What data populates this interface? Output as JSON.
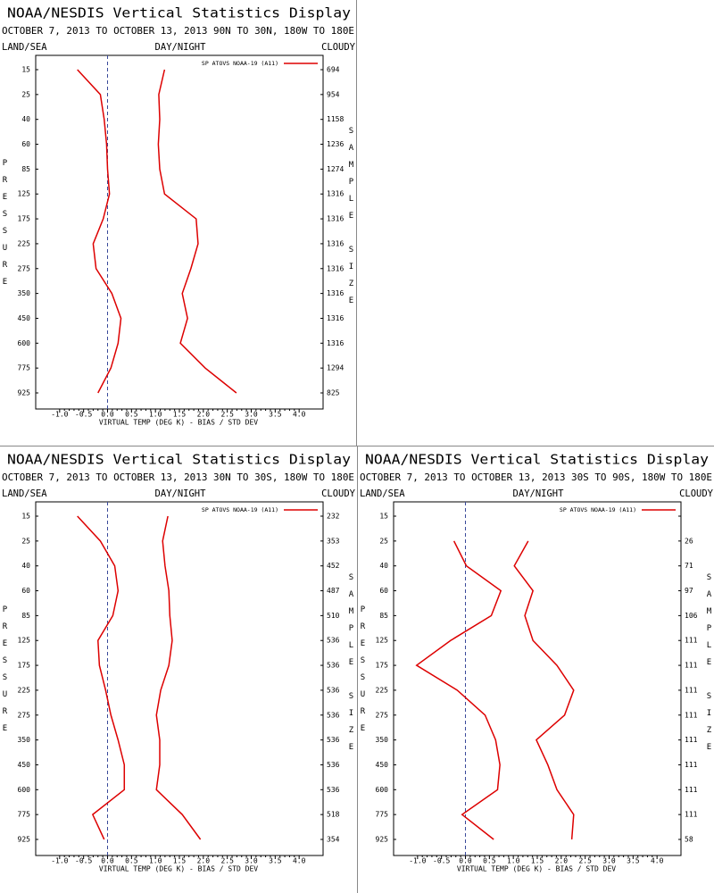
{
  "chart_data": [
    {
      "type": "line",
      "title": "NOAA/NESDIS Vertical Statistics Display",
      "subtitle": "OCTOBER 7, 2013 TO OCTOBER 13, 2013 90N TO 30N, 180W TO 180E",
      "left_header": "LAND/SEA",
      "center_header": "DAY/NIGHT",
      "right_header": "CLOUDY",
      "ylabel": "PRESSURE",
      "y2label": "SAMPLE SIZE",
      "xlabel": "VIRTUAL TEMP (DEG K) - BIAS / STD DEV",
      "categories": [
        15,
        25,
        40,
        60,
        85,
        125,
        175,
        225,
        275,
        350,
        450,
        600,
        775,
        925
      ],
      "sample_sizes": [
        694,
        954,
        1158,
        1236,
        1274,
        1316,
        1316,
        1316,
        1316,
        1316,
        1316,
        1316,
        1294,
        825
      ],
      "series": [
        {
          "name": "SP ATOVS NOAA-19 (A11)",
          "color": "#dd0000",
          "values": [
            -0.63,
            -0.15,
            -0.07,
            -0.02,
            0.0,
            0.04,
            -0.09,
            -0.3,
            -0.24,
            0.09,
            0.28,
            0.22,
            0.07,
            -0.2
          ]
        },
        {
          "color": "#dd0000",
          "values": [
            1.19,
            1.07,
            1.09,
            1.06,
            1.09,
            1.19,
            1.85,
            1.89,
            1.74,
            1.56,
            1.67,
            1.52,
            2.04,
            2.69
          ]
        }
      ],
      "legend": "top-right",
      "xlim": [
        -1.5,
        4.5
      ],
      "xticks": [
        {
          "value": -1,
          "label": "-1.0"
        },
        {
          "value": -0.5,
          "label": "-0.5"
        },
        {
          "value": 0,
          "label": "0.0"
        },
        {
          "value": 0.5,
          "label": "0.5"
        },
        {
          "value": 1,
          "label": "1.0"
        },
        {
          "value": 1.5,
          "label": "1.5"
        },
        {
          "value": 2,
          "label": "2.0"
        },
        {
          "value": 2.5,
          "label": "2.5"
        },
        {
          "value": 3,
          "label": "3.0"
        },
        {
          "value": 3.5,
          "label": "3.5"
        },
        {
          "value": 4,
          "label": "4.0"
        }
      ]
    },
    {
      "type": "line",
      "title": "NOAA/NESDIS Vertical Statistics Display",
      "subtitle": "OCTOBER 7, 2013 TO OCTOBER 13, 2013 30N TO 30S, 180W TO 180E",
      "left_header": "LAND/SEA",
      "center_header": "DAY/NIGHT",
      "right_header": "CLOUDY",
      "ylabel": "PRESSURE",
      "y2label": "SAMPLE SIZE",
      "xlabel": "VIRTUAL TEMP (DEG K) - BIAS / STD DEV",
      "categories": [
        15,
        25,
        40,
        60,
        85,
        125,
        175,
        225,
        275,
        350,
        450,
        600,
        775,
        925
      ],
      "sample_sizes": [
        232,
        353,
        452,
        487,
        510,
        536,
        536,
        536,
        536,
        536,
        536,
        536,
        518,
        354
      ],
      "series": [
        {
          "name": "SP ATOVS NOAA-19 (A11)",
          "color": "#dd0000",
          "values": [
            -0.63,
            -0.15,
            0.15,
            0.22,
            0.11,
            -0.2,
            -0.17,
            -0.04,
            0.07,
            0.22,
            0.35,
            0.35,
            -0.31,
            -0.07
          ]
        },
        {
          "color": "#dd0000",
          "values": [
            1.26,
            1.15,
            1.2,
            1.28,
            1.3,
            1.35,
            1.28,
            1.11,
            1.02,
            1.09,
            1.09,
            1.02,
            1.56,
            1.94
          ]
        }
      ],
      "legend": "top-right",
      "xlim": [
        -1.5,
        4.5
      ],
      "xticks": [
        {
          "value": -1,
          "label": "-1.0"
        },
        {
          "value": -0.5,
          "label": "-0.5"
        },
        {
          "value": 0,
          "label": "0.0"
        },
        {
          "value": 0.5,
          "label": "0.5"
        },
        {
          "value": 1,
          "label": "1.0"
        },
        {
          "value": 1.5,
          "label": "1.5"
        },
        {
          "value": 2,
          "label": "2.0"
        },
        {
          "value": 2.5,
          "label": "2.5"
        },
        {
          "value": 3,
          "label": "3.0"
        },
        {
          "value": 3.5,
          "label": "3.5"
        },
        {
          "value": 4,
          "label": "4.0"
        }
      ]
    },
    {
      "type": "line",
      "title": "NOAA/NESDIS Vertical Statistics Display",
      "subtitle": "OCTOBER 7, 2013 TO OCTOBER 13, 2013 30S TO 90S, 180W TO 180E",
      "left_header": "LAND/SEA",
      "center_header": "DAY/NIGHT",
      "right_header": "CLOUDY",
      "ylabel": "PRESSURE",
      "y2label": "SAMPLE SIZE",
      "xlabel": "VIRTUAL TEMP (DEG K) - BIAS / STD DEV",
      "categories": [
        15,
        25,
        40,
        60,
        85,
        125,
        175,
        225,
        275,
        350,
        450,
        600,
        775,
        925
      ],
      "sample_sizes": [
        null,
        26,
        71,
        97,
        106,
        111,
        111,
        111,
        111,
        111,
        111,
        111,
        111,
        58
      ],
      "series": [
        {
          "name": "SP ATOVS NOAA-19 (A11)",
          "color": "#dd0000",
          "values": [
            null,
            -0.24,
            0.02,
            0.74,
            0.54,
            -0.31,
            -1.02,
            -0.17,
            0.41,
            0.63,
            0.72,
            0.67,
            -0.07,
            0.59
          ]
        },
        {
          "color": "#dd0000",
          "values": [
            null,
            1.31,
            1.02,
            1.41,
            1.24,
            1.41,
            1.91,
            2.26,
            2.07,
            1.48,
            1.72,
            1.91,
            2.26,
            2.22
          ]
        }
      ],
      "legend": "top-right",
      "xlim": [
        -1.5,
        4.5
      ],
      "xticks": [
        {
          "value": -1,
          "label": "-1.0"
        },
        {
          "value": -0.5,
          "label": "-0.5"
        },
        {
          "value": 0,
          "label": "0.0"
        },
        {
          "value": 0.5,
          "label": "0.5"
        },
        {
          "value": 1,
          "label": "1.0"
        },
        {
          "value": 1.5,
          "label": "1.5"
        },
        {
          "value": 2,
          "label": "2.0"
        },
        {
          "value": 2.5,
          "label": "2.5"
        },
        {
          "value": 3,
          "label": "3.0"
        },
        {
          "value": 3.5,
          "label": "3.5"
        },
        {
          "value": 4,
          "label": "4.0"
        }
      ]
    }
  ]
}
